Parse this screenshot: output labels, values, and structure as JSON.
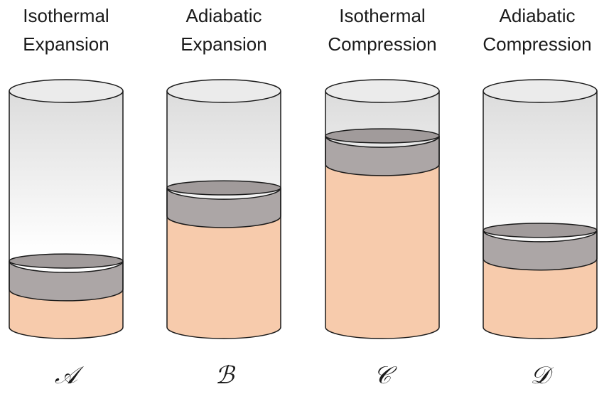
{
  "panels": [
    {
      "caption_line1": "Isothermal",
      "caption_line2": "Expansion",
      "letter": "𝒜",
      "gas_level": 0.16,
      "piston_level": 0.28
    },
    {
      "caption_line1": "Adiabatic",
      "caption_line2": "Expansion",
      "letter": "ℬ",
      "gas_level": 0.47,
      "piston_level": 0.59
    },
    {
      "caption_line1": "Isothermal",
      "caption_line2": "Compression",
      "letter": "𝒞",
      "gas_level": 0.69,
      "piston_level": 0.81
    },
    {
      "caption_line1": "Adiabatic",
      "caption_line2": "Compression",
      "letter": "𝒟",
      "gas_level": 0.29,
      "piston_level": 0.41
    }
  ],
  "colors": {
    "gas": "#f7cbac",
    "piston": "#aca6a6",
    "piston_top": "#a19b9b",
    "cylinder_top": "#ebebeb",
    "outline": "#1a1a1a"
  }
}
